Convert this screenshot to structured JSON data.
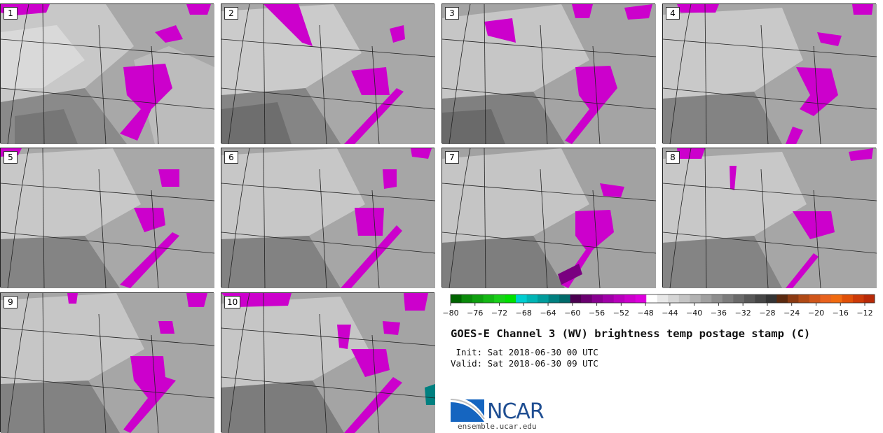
{
  "panels": [
    {
      "label": "1"
    },
    {
      "label": "2"
    },
    {
      "label": "3"
    },
    {
      "label": "4"
    },
    {
      "label": "5"
    },
    {
      "label": "6"
    },
    {
      "label": "7"
    },
    {
      "label": "8"
    },
    {
      "label": "9"
    },
    {
      "label": "10"
    }
  ],
  "colorbar": {
    "ticks": [
      "−80",
      "−76",
      "−72",
      "−68",
      "−64",
      "−60",
      "−56",
      "−52",
      "−48",
      "−44",
      "−40",
      "−36",
      "−32",
      "−28",
      "−24",
      "−20",
      "−16",
      "−12"
    ],
    "colors": [
      "#006400",
      "#0a8a0a",
      "#0fa00f",
      "#14b814",
      "#19d019",
      "#00e000",
      "#00ced1",
      "#00b5b5",
      "#009c9c",
      "#008080",
      "#006a6a",
      "#4b0050",
      "#6a0070",
      "#880090",
      "#a000a8",
      "#b800bc",
      "#cc00cc",
      "#dd00dd",
      "#ffffff",
      "#e8e8e8",
      "#d6d6d6",
      "#c4c4c4",
      "#b2b2b2",
      "#a0a0a0",
      "#8e8e8e",
      "#7c7c7c",
      "#6a6a6a",
      "#585858",
      "#464646",
      "#343434",
      "#5a2a10",
      "#8b3a12",
      "#b04a16",
      "#d0561a",
      "#e8621e",
      "#f06a10",
      "#e05008",
      "#cc3a08",
      "#b82a08"
    ]
  },
  "title": "GOES-E Channel 3 (WV) brightness temp postage stamp (C)",
  "init": " Init: Sat 2018-06-30 00 UTC",
  "valid": "Valid: Sat 2018-06-30 09 UTC",
  "logo": {
    "name": "NCAR",
    "url": "ensemble.ucar.edu"
  }
}
